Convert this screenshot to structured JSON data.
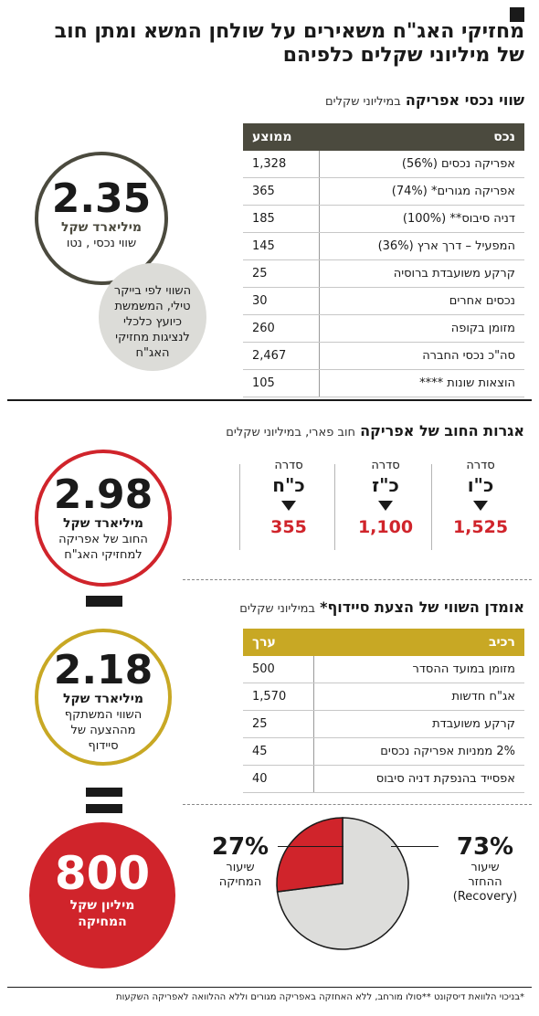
{
  "headline": {
    "line1": "מחזיקי האג\"ח משאירים על שולחן המשא ומתן חוב",
    "line2": "של מיליוני שקלים כלפיהם"
  },
  "assets": {
    "title": "שווי נכסי אפריקה",
    "subtitle": "במיליוני שקלים",
    "col_asset": "נכס",
    "col_avg": "ממוצע",
    "rows": [
      {
        "name": "אפריקה נכסים (56%)",
        "value": "1,328"
      },
      {
        "name": "אפריקה מגורים* (74%)",
        "value": "365"
      },
      {
        "name": "דניה סיבוס** (100%)",
        "value": "185"
      },
      {
        "name": "המפעיל – דרך ארץ (36%)",
        "value": "145"
      },
      {
        "name": "קרקע משועבדת ברוסיה",
        "value": "25"
      },
      {
        "name": "נכסים אחרים",
        "value": "30"
      },
      {
        "name": "מזומן בקופה",
        "value": "260"
      },
      {
        "name": "סה\"כ נכסי החברה",
        "value": "2,467"
      },
      {
        "name": "הוצאות שונות ****",
        "value": "105"
      }
    ]
  },
  "circle_assets": {
    "value": "2.35",
    "unit": "מיליארד שקל",
    "desc": "שווי נכסי , נטו"
  },
  "note_bubble": {
    "l1": "השווי לפי בייקר",
    "l2": "טילי, המשמשת",
    "l3": "כיועץ כלכלי",
    "l4": "לנציגות מחזיקי",
    "l5": "האג\"ח"
  },
  "debt": {
    "title": "אגרות החוב של אפריקה",
    "subtitle": "חוב פארי, במיליוני שקלים",
    "series": [
      {
        "label": "סדרה",
        "code": "כ\"ו",
        "value": "1,525"
      },
      {
        "label": "סדרה",
        "code": "כ\"ז",
        "value": "1,100"
      },
      {
        "label": "סדרה",
        "code": "כ\"ח",
        "value": "355"
      }
    ]
  },
  "circle_debt": {
    "value": "2.98",
    "unit": "מיליארד שקל",
    "desc1": "החוב של אפריקה",
    "desc2": "למחזיקי האג\"ח"
  },
  "offer": {
    "title": "אומדן השווי של הצעת סיידוף*",
    "subtitle": "במיליוני שקלים",
    "col_component": "רכיב",
    "col_value": "ערך",
    "rows": [
      {
        "name": "מזומן במועד ההסדר",
        "value": "500"
      },
      {
        "name": "אג\"ח חדשות",
        "value": "1,570"
      },
      {
        "name": "קרקע משועבדת",
        "value": "25"
      },
      {
        "name": "2% ממניות אפריקה נכסים",
        "value": "45"
      },
      {
        "name": "אפסייד בהנפקת דניה סיבוס",
        "value": "40"
      }
    ]
  },
  "circle_offer": {
    "value": "2.18",
    "unit": "מיליארד שקל",
    "desc1": "השווי המשתקף",
    "desc2": "מההצעה של",
    "desc3": "סיידוף"
  },
  "circle_haircut": {
    "value": "800",
    "unit1": "מיליון שקל",
    "unit2": "המחיקה"
  },
  "chart_data": {
    "type": "pie",
    "categories": [
      "שיעור ההחזר (Recovery)",
      "שיעור המחיקה"
    ],
    "values": [
      73,
      27
    ],
    "colors": [
      "#dddddb",
      "#d0242b"
    ]
  },
  "pie_labels": {
    "recovery_pct": "73%",
    "recovery_t1": "שיעור",
    "recovery_t2": "ההחזר",
    "recovery_t3": "(Recovery)",
    "haircut_pct": "27%",
    "haircut_t1": "שיעור",
    "haircut_t2": "המחיקה"
  },
  "footnote": "*בניכוי הלוואת דיסקונט  **סולו מורחב, ללא האחזקה באפריקה מגורים וללא ההלוואה לאפריקה השקעות",
  "colors": {
    "dark": "#4b4a3e",
    "gold": "#c8a824",
    "red": "#d0242b",
    "grey": "#dcdcd8"
  }
}
